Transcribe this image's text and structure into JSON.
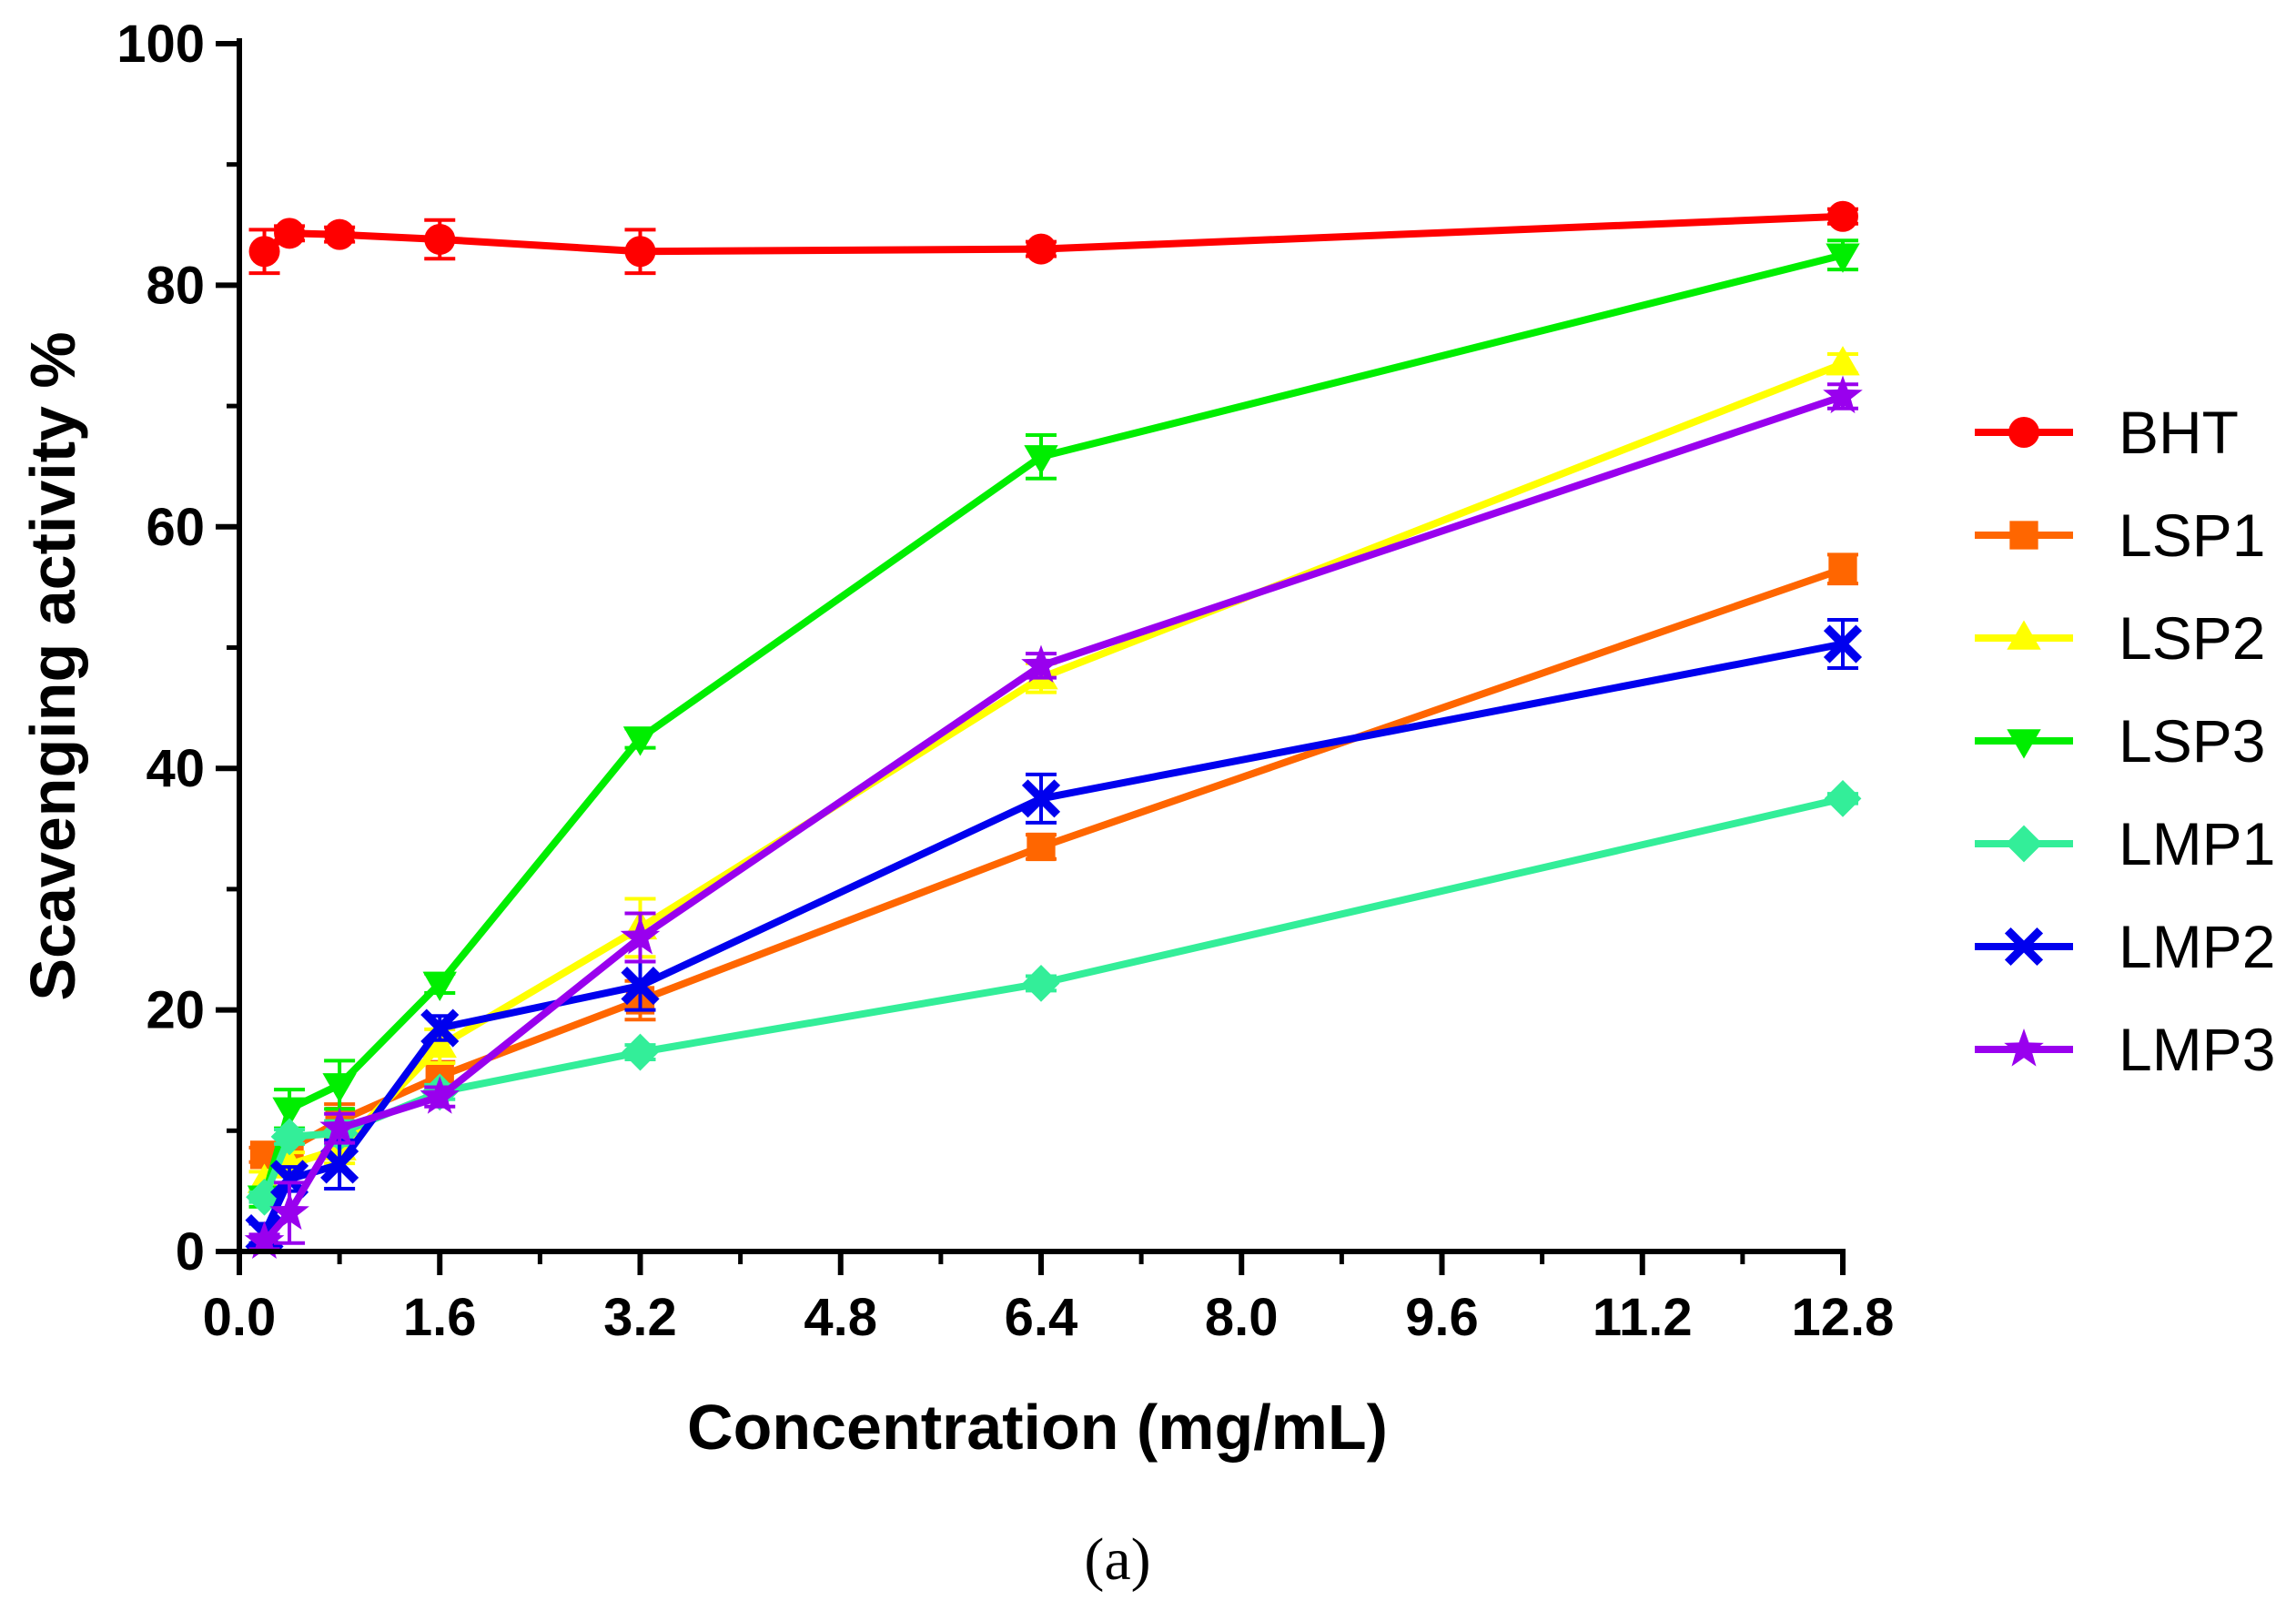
{
  "chart_data": {
    "type": "line",
    "title": "",
    "xlabel": "Concentration (mg/mL)",
    "ylabel": "Scavenging activity %",
    "caption": "(a)",
    "xlim": [
      0.0,
      12.8
    ],
    "ylim": [
      0,
      100
    ],
    "xticks": [
      "0.0",
      "1.6",
      "3.2",
      "4.8",
      "6.4",
      "8.0",
      "9.6",
      "11.2",
      "12.8"
    ],
    "yticks": [
      "0",
      "20",
      "40",
      "60",
      "80",
      "100"
    ],
    "legend_position": "right",
    "x": [
      0.2,
      0.4,
      0.8,
      1.6,
      3.2,
      6.4,
      12.8
    ],
    "series": [
      {
        "name": "BHT",
        "color": "#ff0000",
        "marker": "circle",
        "values": [
          82.8,
          84.3,
          84.2,
          83.8,
          82.8,
          83.0,
          85.7
        ],
        "errors": [
          1.8,
          0.6,
          0.6,
          1.6,
          1.8,
          0.6,
          0.6
        ]
      },
      {
        "name": "LSP1",
        "color": "#ff6600",
        "marker": "square",
        "values": [
          8.0,
          8.5,
          10.8,
          14.5,
          20.8,
          33.5,
          56.5
        ],
        "errors": [
          0.6,
          0.9,
          1.4,
          1.2,
          1.6,
          1.0,
          1.2
        ]
      },
      {
        "name": "LSP2",
        "color": "#ffff00",
        "marker": "triangle-up",
        "values": [
          5.8,
          7.2,
          8.5,
          17.0,
          26.8,
          47.5,
          73.5
        ],
        "errors": [
          0.8,
          1.0,
          1.2,
          1.4,
          2.4,
          1.2,
          0.8
        ]
      },
      {
        "name": "LSP3",
        "color": "#00ee00",
        "marker": "triangle-down",
        "values": [
          4.5,
          11.8,
          13.8,
          22.2,
          42.5,
          65.8,
          82.5
        ],
        "errors": [
          0.8,
          1.6,
          2.0,
          0.8,
          0.8,
          1.8,
          1.2
        ]
      },
      {
        "name": "LMP1",
        "color": "#33ee99",
        "marker": "diamond",
        "values": [
          4.5,
          9.5,
          9.8,
          13.2,
          16.5,
          22.2,
          37.5
        ],
        "errors": [
          0.4,
          0.6,
          1.0,
          0.6,
          0.6,
          0.6,
          0.4
        ]
      },
      {
        "name": "LMP2",
        "color": "#0000ee",
        "marker": "x",
        "values": [
          1.5,
          6.0,
          7.2,
          18.5,
          22.0,
          37.5,
          50.3
        ],
        "errors": [
          0.8,
          1.0,
          2.0,
          1.0,
          2.0,
          2.0,
          2.0
        ]
      },
      {
        "name": "LMP3",
        "color": "#9900ee",
        "marker": "star",
        "values": [
          0.8,
          3.2,
          10.2,
          12.8,
          26.0,
          48.5,
          70.8
        ],
        "errors": [
          0.6,
          2.5,
          1.2,
          0.8,
          2.0,
          1.0,
          1.0
        ]
      }
    ]
  }
}
